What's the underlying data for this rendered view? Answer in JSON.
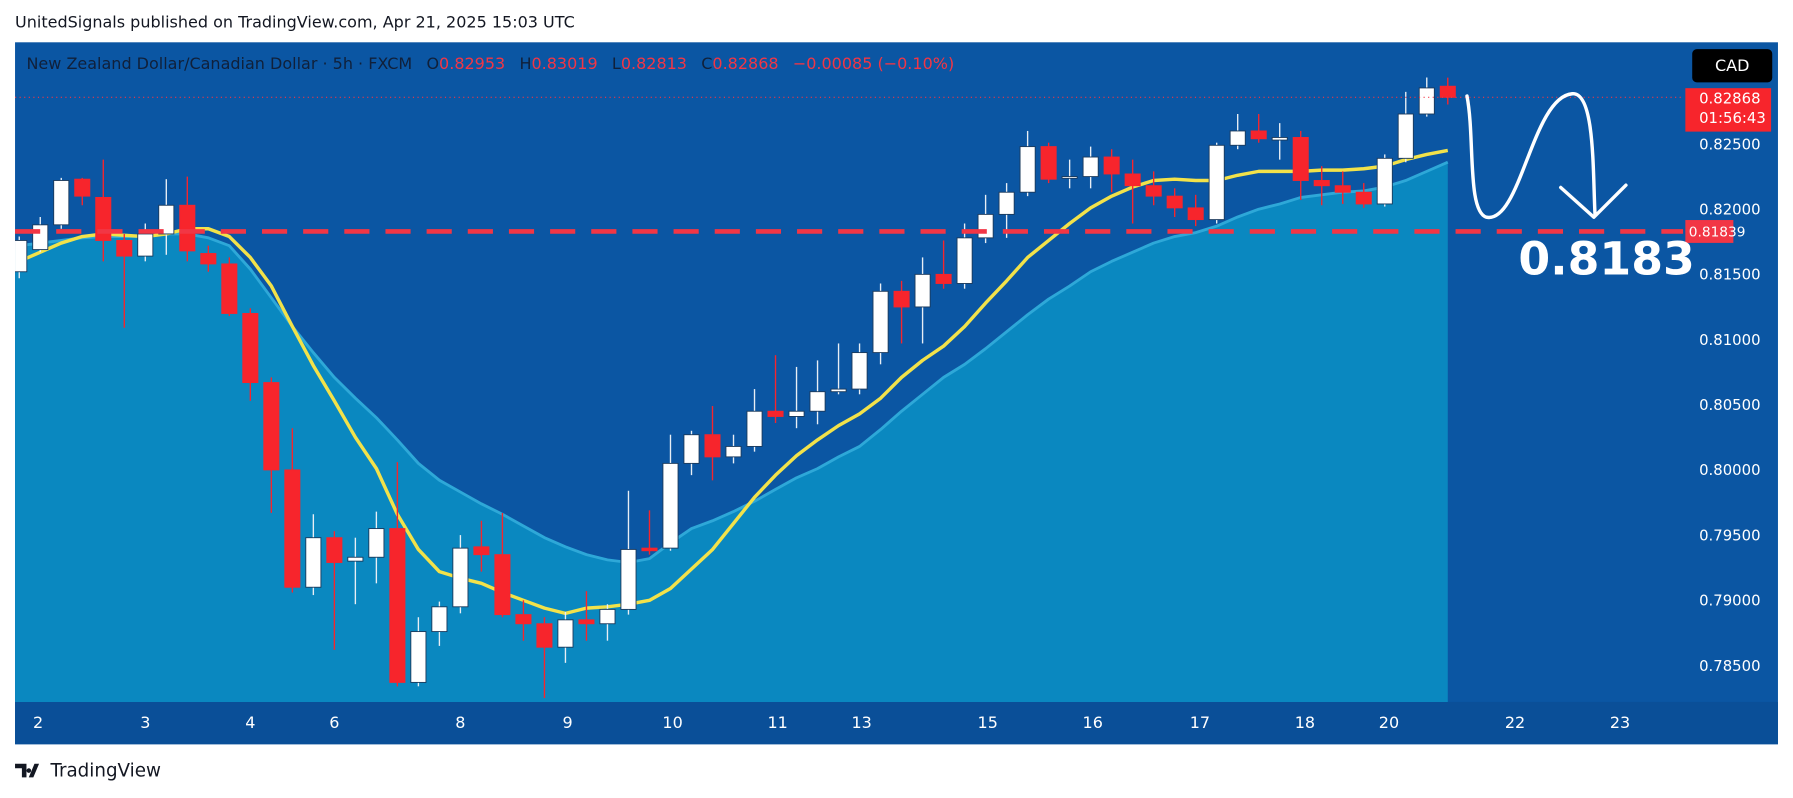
{
  "header": {
    "publisher": "UnitedSignals published on TradingView.com, Apr 21, 2025 15:03 UTC"
  },
  "footer": {
    "brand": "TradingView"
  },
  "chart_data": {
    "type": "candlestick",
    "title": "New Zealand Dollar/Canadian Dollar · 5h · FXCM",
    "ohlc_letters": {
      "open": "O",
      "high": "H",
      "low": "L",
      "close": "C"
    },
    "change": "−0.00085 (−0.10%)",
    "currency": "CAD",
    "countdown": "01:56:43",
    "annotation": "0.8183",
    "up_color": "#ffffff",
    "down_color": "#f7252c",
    "x": [
      0,
      1,
      2,
      3,
      4,
      5,
      6,
      7,
      8,
      9,
      10,
      11,
      12,
      13,
      14,
      15,
      16,
      17,
      18,
      19,
      20,
      21,
      22,
      23,
      24,
      25,
      26,
      27,
      28,
      29,
      30,
      31,
      32,
      33,
      34,
      35,
      36,
      37,
      38,
      39,
      40,
      41,
      42,
      43,
      44,
      45,
      46,
      47,
      48,
      49,
      50,
      51,
      52,
      53,
      54,
      55,
      56,
      57,
      58,
      59,
      60,
      61,
      62,
      63,
      64,
      65,
      66,
      67,
      68
    ],
    "open": [
      0.8153,
      0.817,
      0.8189,
      0.8224,
      0.821,
      0.8177,
      0.8165,
      0.8182,
      0.8204,
      0.8167,
      0.8159,
      0.8121,
      0.8068,
      0.8001,
      0.7911,
      0.7949,
      0.7931,
      0.7934,
      0.7956,
      0.7838,
      0.7877,
      0.7896,
      0.7942,
      0.7936,
      0.789,
      0.7883,
      0.7865,
      0.7886,
      0.7883,
      0.7894,
      0.7941,
      0.7941,
      0.8006,
      0.8028,
      0.8011,
      0.8019,
      0.8046,
      0.8042,
      0.8046,
      0.8061,
      0.8063,
      0.8091,
      0.8138,
      0.8126,
      0.8151,
      0.8144,
      0.8179,
      0.8197,
      0.8214,
      0.8249,
      0.8225,
      0.8226,
      0.8241,
      0.8228,
      0.8219,
      0.8211,
      0.8202,
      0.8193,
      0.825,
      0.8261,
      0.8254,
      0.8256,
      0.8223,
      0.8219,
      0.8214,
      0.8205,
      0.824,
      0.8274,
      0.82953
    ],
    "high": [
      0.818,
      0.8195,
      0.8225,
      0.8225,
      0.8239,
      0.8182,
      0.819,
      0.8224,
      0.8226,
      0.8173,
      0.8164,
      0.8125,
      0.8072,
      0.8033,
      0.7967,
      0.7954,
      0.7949,
      0.7969,
      0.8007,
      0.7888,
      0.79,
      0.7951,
      0.7962,
      0.7968,
      0.7901,
      0.7888,
      0.7892,
      0.7908,
      0.7898,
      0.7985,
      0.797,
      0.8028,
      0.8031,
      0.805,
      0.8028,
      0.8063,
      0.8089,
      0.808,
      0.8085,
      0.8098,
      0.8098,
      0.8144,
      0.8146,
      0.8164,
      0.8177,
      0.819,
      0.8212,
      0.8221,
      0.8261,
      0.8252,
      0.8239,
      0.8249,
      0.8247,
      0.8239,
      0.823,
      0.8217,
      0.8212,
      0.8252,
      0.8274,
      0.8274,
      0.8267,
      0.8261,
      0.8234,
      0.823,
      0.8221,
      0.8243,
      0.8291,
      0.8302,
      0.83019
    ],
    "low": [
      0.8148,
      0.8168,
      0.8186,
      0.8204,
      0.8161,
      0.811,
      0.8161,
      0.8166,
      0.8161,
      0.8153,
      0.8119,
      0.8054,
      0.7968,
      0.7907,
      0.7905,
      0.7863,
      0.7898,
      0.7914,
      0.7835,
      0.7835,
      0.7866,
      0.7891,
      0.7923,
      0.7888,
      0.787,
      0.7826,
      0.7853,
      0.787,
      0.787,
      0.789,
      0.7936,
      0.7939,
      0.7997,
      0.7993,
      0.8006,
      0.8015,
      0.8037,
      0.8033,
      0.8036,
      0.8059,
      0.8059,
      0.8082,
      0.8098,
      0.8098,
      0.814,
      0.814,
      0.8175,
      0.8179,
      0.8211,
      0.8221,
      0.8217,
      0.8217,
      0.8214,
      0.819,
      0.8204,
      0.8195,
      0.8188,
      0.819,
      0.8247,
      0.8252,
      0.8239,
      0.8208,
      0.8204,
      0.8205,
      0.8202,
      0.8203,
      0.8237,
      0.8272,
      0.82813
    ],
    "close": [
      0.8177,
      0.8189,
      0.8223,
      0.8211,
      0.8177,
      0.8165,
      0.8182,
      0.8204,
      0.8169,
      0.8159,
      0.8121,
      0.8068,
      0.8001,
      0.7911,
      0.7949,
      0.793,
      0.7934,
      0.7956,
      0.7838,
      0.7877,
      0.7896,
      0.7941,
      0.7936,
      0.789,
      0.7883,
      0.7865,
      0.7886,
      0.7883,
      0.7894,
      0.794,
      0.7939,
      0.8006,
      0.8028,
      0.8011,
      0.8019,
      0.8046,
      0.8042,
      0.8046,
      0.8061,
      0.8063,
      0.8091,
      0.8138,
      0.8126,
      0.8151,
      0.8144,
      0.8179,
      0.8197,
      0.8214,
      0.8249,
      0.8224,
      0.8226,
      0.8241,
      0.8228,
      0.8219,
      0.8211,
      0.8202,
      0.8193,
      0.825,
      0.8261,
      0.8255,
      0.8256,
      0.8223,
      0.8219,
      0.8214,
      0.8205,
      0.824,
      0.8274,
      0.8294,
      0.82868
    ],
    "series": [
      {
        "color": "#2ea8d8",
        "fill": "#0a88c0",
        "values": [
          0.8173,
          0.8175,
          0.8177,
          0.8179,
          0.818,
          0.818,
          0.818,
          0.8182,
          0.8182,
          0.8179,
          0.8173,
          0.8155,
          0.8133,
          0.8111,
          0.8091,
          0.8072,
          0.8056,
          0.8041,
          0.8024,
          0.8006,
          0.7993,
          0.7984,
          0.7975,
          0.7967,
          0.7958,
          0.7949,
          0.7942,
          0.7936,
          0.7932,
          0.793,
          0.7933,
          0.7945,
          0.7956,
          0.7962,
          0.7969,
          0.7977,
          0.7986,
          0.7995,
          0.8002,
          0.8011,
          0.8019,
          0.8032,
          0.8046,
          0.8059,
          0.8072,
          0.8082,
          0.8094,
          0.8107,
          0.812,
          0.8132,
          0.8142,
          0.8153,
          0.8161,
          0.8168,
          0.8175,
          0.818,
          0.8183,
          0.8188,
          0.8195,
          0.8201,
          0.8205,
          0.821,
          0.8212,
          0.8214,
          0.8215,
          0.8218,
          0.8223,
          0.823,
          0.8237
        ]
      },
      {
        "color": "#f2e24a",
        "values": [
          0.8161,
          0.8168,
          0.8175,
          0.818,
          0.8182,
          0.8181,
          0.818,
          0.8182,
          0.8186,
          0.8186,
          0.818,
          0.8164,
          0.8142,
          0.8111,
          0.8081,
          0.8054,
          0.8026,
          0.8002,
          0.7967,
          0.794,
          0.7923,
          0.7918,
          0.7914,
          0.7907,
          0.7901,
          0.7895,
          0.7891,
          0.7895,
          0.7896,
          0.7898,
          0.7901,
          0.791,
          0.7925,
          0.794,
          0.796,
          0.798,
          0.7997,
          0.8012,
          0.8024,
          0.8035,
          0.8044,
          0.8056,
          0.8072,
          0.8085,
          0.8096,
          0.8111,
          0.8129,
          0.8146,
          0.8164,
          0.8177,
          0.819,
          0.8202,
          0.8211,
          0.8218,
          0.8223,
          0.8224,
          0.8223,
          0.8223,
          0.8227,
          0.823,
          0.823,
          0.823,
          0.8231,
          0.8231,
          0.8232,
          0.8234,
          0.8239,
          0.8243,
          0.8246
        ]
      }
    ],
    "hline": {
      "value": 0.81839,
      "color": "#f23645"
    },
    "xlim": [
      -0.2,
      79.2
    ],
    "ylim": [
      0.7823,
      0.8329
    ],
    "xticks": [
      {
        "value": 0.9,
        "label": "2"
      },
      {
        "value": 6,
        "label": "3"
      },
      {
        "value": 11,
        "label": "4"
      },
      {
        "value": 15,
        "label": "6"
      },
      {
        "value": 21,
        "label": "8"
      },
      {
        "value": 26.1,
        "label": "9"
      },
      {
        "value": 31.1,
        "label": "10"
      },
      {
        "value": 36.1,
        "label": "11"
      },
      {
        "value": 40.1,
        "label": "13"
      },
      {
        "value": 46.1,
        "label": "15"
      },
      {
        "value": 51.1,
        "label": "16"
      },
      {
        "value": 56.2,
        "label": "17"
      },
      {
        "value": 61.2,
        "label": "18"
      },
      {
        "value": 65.2,
        "label": "20"
      },
      {
        "value": 71.2,
        "label": "22"
      },
      {
        "value": 76.2,
        "label": "23"
      }
    ],
    "yticks": [
      {
        "value": 0.785,
        "label": "0.78500"
      },
      {
        "value": 0.79,
        "label": "0.79000"
      },
      {
        "value": 0.795,
        "label": "0.79500"
      },
      {
        "value": 0.8,
        "label": "0.80000"
      },
      {
        "value": 0.805,
        "label": "0.80500"
      },
      {
        "value": 0.81,
        "label": "0.81000"
      },
      {
        "value": 0.815,
        "label": "0.81500"
      },
      {
        "value": 0.82,
        "label": "0.82000"
      },
      {
        "value": 0.825,
        "label": "0.82500"
      }
    ],
    "grid": false
  }
}
